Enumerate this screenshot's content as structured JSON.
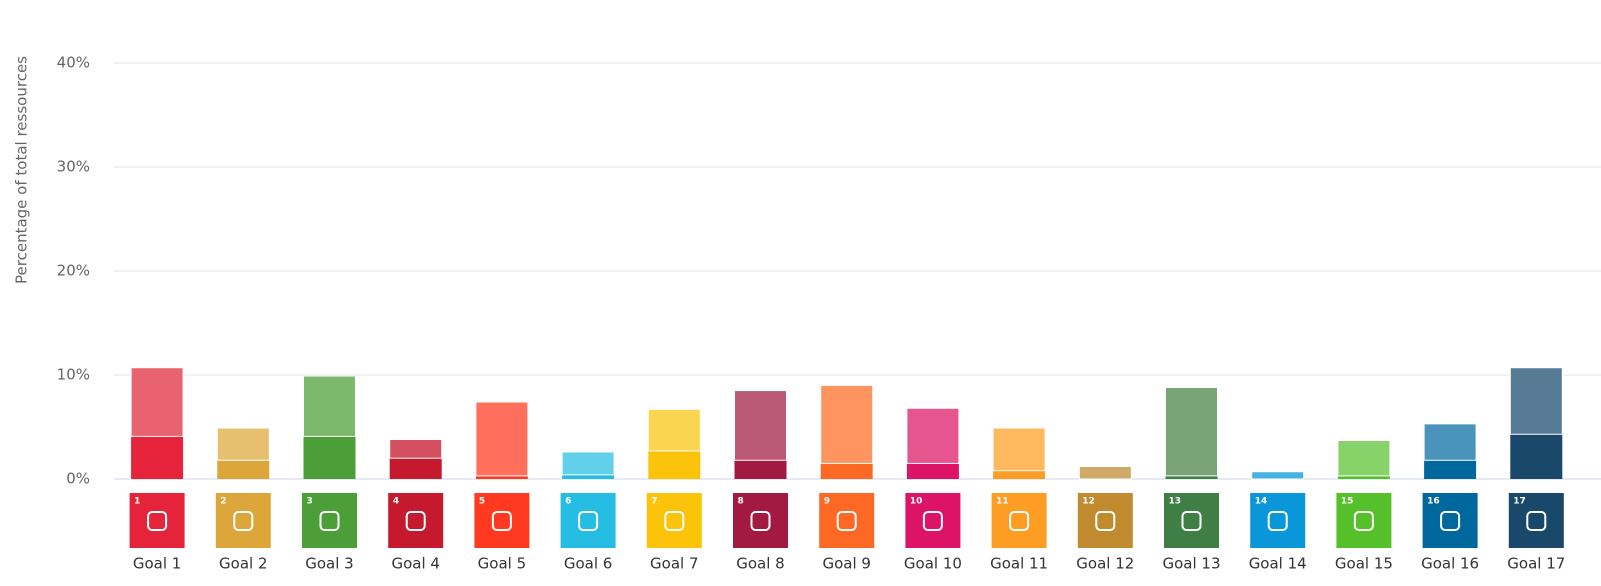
{
  "chart_data": {
    "type": "stacked-bar",
    "y_label": "Percentage of total ressources",
    "categories": [
      "Goal 1",
      "Goal 2",
      "Goal 3",
      "Goal 4",
      "Goal 5",
      "Goal 6",
      "Goal 7",
      "Goal 8",
      "Goal 9",
      "Goal 10",
      "Goal 11",
      "Goal 12",
      "Goal 13",
      "Goal 14",
      "Goal 15",
      "Goal 16",
      "Goal 17"
    ],
    "icon_labels": [
      "1",
      "2",
      "3",
      "4",
      "5",
      "6",
      "7",
      "8",
      "9",
      "10",
      "11",
      "12",
      "13",
      "14",
      "15",
      "16",
      "17"
    ],
    "icon_colors": [
      "#e5243b",
      "#dda63a",
      "#4c9f38",
      "#c5192d",
      "#ff3a21",
      "#26bde2",
      "#fcc30b",
      "#a21942",
      "#fd6925",
      "#dd1367",
      "#fd9d24",
      "#bf8b2e",
      "#3f7e44",
      "#0a97d9",
      "#56c02b",
      "#00689d",
      "#19486a"
    ],
    "series": [
      {
        "colors": [
          "#e5243b",
          "#dda63a",
          "#4c9f38",
          "#c5192d",
          "#ff3a21",
          "#26bde2",
          "#fcc30b",
          "#a21942",
          "#fd6925",
          "#dd1367",
          "#fd9d24",
          "#bf8b2e",
          "#3f7e44",
          "#0a97d9",
          "#56c02b",
          "#00689d",
          "#19486a"
        ],
        "values": [
          4.1,
          1.8,
          4.1,
          2.0,
          0.3,
          0.4,
          2.7,
          1.8,
          1.5,
          1.5,
          0.8,
          0,
          0.3,
          0,
          0.3,
          1.8,
          4.3
        ]
      },
      {
        "colors": [
          "#e8636f",
          "#e6c06e",
          "#7db96d",
          "#d25060",
          "#ff6f5c",
          "#63d0ea",
          "#fbd450",
          "#bb5a76",
          "#fe9561",
          "#e65590",
          "#feb95f",
          "#cfa968",
          "#78a478",
          "#47b2e4",
          "#88d26a",
          "#4a93ba",
          "#587b95"
        ],
        "values": [
          6.6,
          3.1,
          5.8,
          1.8,
          7.1,
          2.2,
          4.0,
          6.7,
          7.5,
          5.3,
          4.1,
          1.2,
          8.5,
          0.7,
          3.4,
          3.5,
          6.4
        ]
      }
    ],
    "ylim": [
      0,
      45
    ],
    "yticks": [
      {
        "value": 0,
        "label": "0%"
      },
      {
        "value": 10,
        "label": "10%"
      },
      {
        "value": 20,
        "label": "20%"
      },
      {
        "value": 30,
        "label": "30%"
      },
      {
        "value": 40,
        "label": "40%"
      }
    ],
    "grid": true
  }
}
